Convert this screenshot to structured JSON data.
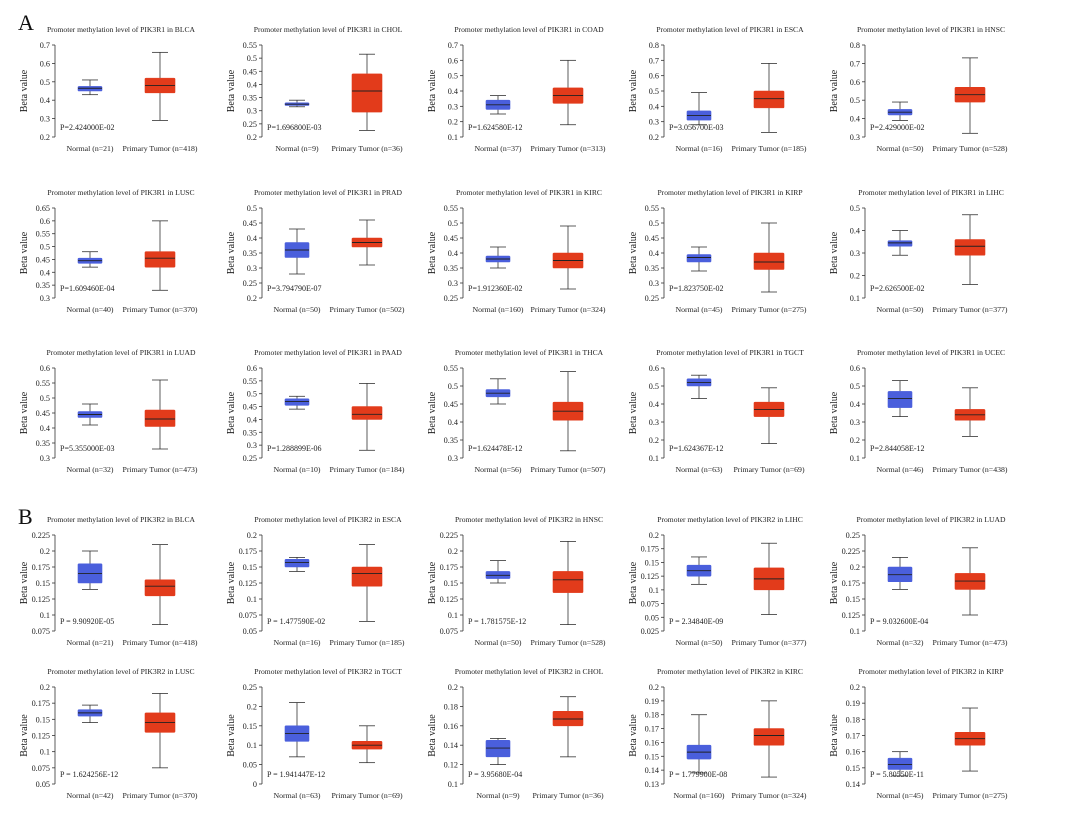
{
  "colors": {
    "normal": "#4a5fdc",
    "tumor": "#e23b1b",
    "median": "#222222"
  },
  "panels": [
    {
      "label": "A"
    },
    {
      "label": "B"
    }
  ],
  "chart_data": [
    {
      "type": "box",
      "panel": "A",
      "title": "Promoter methylation level of PIK3R1 in BLCA",
      "ylabel": "Beta value",
      "ylim": [
        0.2,
        0.7
      ],
      "yticks": [
        0.2,
        0.3,
        0.4,
        0.5,
        0.6,
        0.7
      ],
      "categories": [
        "Normal (n=21)",
        "Primary Tumor (n=418)"
      ],
      "pvalue": "P=2.424000E-02",
      "boxes": [
        [
          0.43,
          0.45,
          0.465,
          0.475,
          0.51
        ],
        [
          0.29,
          0.44,
          0.48,
          0.52,
          0.66
        ]
      ]
    },
    {
      "type": "box",
      "panel": "A",
      "title": "Promoter methylation level of PIK3R1 in CHOL",
      "ylabel": "Beta value",
      "ylim": [
        0.2,
        0.55
      ],
      "yticks": [
        0.2,
        0.25,
        0.3,
        0.35,
        0.4,
        0.45,
        0.5,
        0.55
      ],
      "categories": [
        "Normal (n=9)",
        "Primary Tumor (n=36)"
      ],
      "pvalue": "P=1.696800E-03",
      "boxes": [
        [
          0.315,
          0.32,
          0.325,
          0.33,
          0.34
        ],
        [
          0.225,
          0.295,
          0.375,
          0.44,
          0.515
        ]
      ]
    },
    {
      "type": "box",
      "panel": "A",
      "title": "Promoter methylation level of PIK3R1 in COAD",
      "ylabel": "Beta value",
      "ylim": [
        0.1,
        0.7
      ],
      "yticks": [
        0.1,
        0.2,
        0.3,
        0.4,
        0.5,
        0.6,
        0.7
      ],
      "categories": [
        "Normal (n=37)",
        "Primary Tumor (n=313)"
      ],
      "pvalue": "P=1.624580E-12",
      "boxes": [
        [
          0.25,
          0.28,
          0.31,
          0.34,
          0.37
        ],
        [
          0.18,
          0.32,
          0.37,
          0.42,
          0.6
        ]
      ]
    },
    {
      "type": "box",
      "panel": "A",
      "title": "Promoter methylation level of PIK3R1 in ESCA",
      "ylabel": "Beta value",
      "ylim": [
        0.2,
        0.8
      ],
      "yticks": [
        0.2,
        0.3,
        0.4,
        0.5,
        0.6,
        0.7,
        0.8
      ],
      "categories": [
        "Normal (n=16)",
        "Primary Tumor (n=185)"
      ],
      "pvalue": "P=3.056700E-03",
      "boxes": [
        [
          0.28,
          0.31,
          0.34,
          0.37,
          0.49
        ],
        [
          0.23,
          0.39,
          0.45,
          0.5,
          0.68
        ]
      ]
    },
    {
      "type": "box",
      "panel": "A",
      "title": "Promoter methylation level of PIK3R1 in HNSC",
      "ylabel": "Beta value",
      "ylim": [
        0.3,
        0.8
      ],
      "yticks": [
        0.3,
        0.4,
        0.5,
        0.6,
        0.7,
        0.8
      ],
      "categories": [
        "Normal (n=50)",
        "Primary Tumor (n=528)"
      ],
      "pvalue": "P=2.429000E-02",
      "boxes": [
        [
          0.39,
          0.42,
          0.435,
          0.45,
          0.49
        ],
        [
          0.32,
          0.49,
          0.53,
          0.57,
          0.73
        ]
      ]
    },
    {
      "type": "box",
      "panel": "A",
      "title": "Promoter methylation level of PIK3R1 in LUSC",
      "ylabel": "Beta value",
      "ylim": [
        0.3,
        0.65
      ],
      "yticks": [
        0.3,
        0.35,
        0.4,
        0.45,
        0.5,
        0.55,
        0.6,
        0.65
      ],
      "categories": [
        "Normal (n=40)",
        "Primary Tumor (n=370)"
      ],
      "pvalue": "P=1.609460E-04",
      "boxes": [
        [
          0.42,
          0.435,
          0.445,
          0.455,
          0.48
        ],
        [
          0.33,
          0.42,
          0.455,
          0.48,
          0.6
        ]
      ]
    },
    {
      "type": "box",
      "panel": "A",
      "title": "Promoter methylation level of PIK3R1 in PRAD",
      "ylabel": "Beta value",
      "ylim": [
        0.2,
        0.5
      ],
      "yticks": [
        0.2,
        0.25,
        0.3,
        0.35,
        0.4,
        0.45,
        0.5
      ],
      "categories": [
        "Normal (n=50)",
        "Primary Tumor (n=502)"
      ],
      "pvalue": "P=3.794790E-07",
      "boxes": [
        [
          0.28,
          0.335,
          0.36,
          0.385,
          0.43
        ],
        [
          0.31,
          0.37,
          0.385,
          0.4,
          0.46
        ]
      ]
    },
    {
      "type": "box",
      "panel": "A",
      "title": "Promoter methylation level of PIK3R1 in KIRC",
      "ylabel": "Beta value",
      "ylim": [
        0.25,
        0.55
      ],
      "yticks": [
        0.25,
        0.3,
        0.35,
        0.4,
        0.45,
        0.5,
        0.55
      ],
      "categories": [
        "Normal (n=160)",
        "Primary Tumor (n=324)"
      ],
      "pvalue": "P=1.912360E-02",
      "boxes": [
        [
          0.35,
          0.37,
          0.38,
          0.39,
          0.42
        ],
        [
          0.28,
          0.35,
          0.375,
          0.4,
          0.49
        ]
      ]
    },
    {
      "type": "box",
      "panel": "A",
      "title": "Promoter methylation level of PIK3R1 in KIRP",
      "ylabel": "Beta value",
      "ylim": [
        0.25,
        0.55
      ],
      "yticks": [
        0.25,
        0.3,
        0.35,
        0.4,
        0.45,
        0.5,
        0.55
      ],
      "categories": [
        "Normal (n=45)",
        "Primary Tumor (n=275)"
      ],
      "pvalue": "P=1.823750E-02",
      "boxes": [
        [
          0.34,
          0.37,
          0.385,
          0.395,
          0.42
        ],
        [
          0.27,
          0.345,
          0.37,
          0.4,
          0.5
        ]
      ]
    },
    {
      "type": "box",
      "panel": "A",
      "title": "Promoter methylation level of PIK3R1 in LIHC",
      "ylabel": "Beta value",
      "ylim": [
        0.1,
        0.5
      ],
      "yticks": [
        0.1,
        0.2,
        0.3,
        0.4,
        0.5
      ],
      "categories": [
        "Normal (n=50)",
        "Primary Tumor (n=377)"
      ],
      "pvalue": "P=2.626500E-02",
      "boxes": [
        [
          0.29,
          0.33,
          0.345,
          0.355,
          0.4
        ],
        [
          0.16,
          0.29,
          0.33,
          0.36,
          0.47
        ]
      ]
    },
    {
      "type": "box",
      "panel": "A",
      "title": "Promoter methylation level of PIK3R1 in LUAD",
      "ylabel": "Beta value",
      "ylim": [
        0.3,
        0.6
      ],
      "yticks": [
        0.3,
        0.35,
        0.4,
        0.45,
        0.5,
        0.55,
        0.6
      ],
      "categories": [
        "Normal (n=32)",
        "Primary Tumor (n=473)"
      ],
      "pvalue": "P=5.355000E-03",
      "boxes": [
        [
          0.41,
          0.435,
          0.445,
          0.455,
          0.48
        ],
        [
          0.33,
          0.405,
          0.43,
          0.46,
          0.56
        ]
      ]
    },
    {
      "type": "box",
      "panel": "A",
      "title": "Promoter methylation level of PIK3R1 in PAAD",
      "ylabel": "Beta value",
      "ylim": [
        0.25,
        0.6
      ],
      "yticks": [
        0.25,
        0.3,
        0.35,
        0.4,
        0.45,
        0.5,
        0.55,
        0.6
      ],
      "categories": [
        "Normal (n=10)",
        "Primary Tumor (n=184)"
      ],
      "pvalue": "P=1.288899E-06",
      "boxes": [
        [
          0.44,
          0.455,
          0.47,
          0.48,
          0.49
        ],
        [
          0.28,
          0.4,
          0.42,
          0.45,
          0.54
        ]
      ]
    },
    {
      "type": "box",
      "panel": "A",
      "title": "Promoter methylation level of PIK3R1 in THCA",
      "ylabel": "Beta value",
      "ylim": [
        0.3,
        0.55
      ],
      "yticks": [
        0.3,
        0.35,
        0.4,
        0.45,
        0.5,
        0.55
      ],
      "categories": [
        "Normal (n=56)",
        "Primary Tumor (n=507)"
      ],
      "pvalue": "P=1.624478E-12",
      "boxes": [
        [
          0.45,
          0.47,
          0.48,
          0.49,
          0.52
        ],
        [
          0.32,
          0.405,
          0.43,
          0.455,
          0.54
        ]
      ]
    },
    {
      "type": "box",
      "panel": "A",
      "title": "Promoter methylation level of PIK3R1 in TGCT",
      "ylabel": "Beta value",
      "ylim": [
        0.1,
        0.6
      ],
      "yticks": [
        0.1,
        0.2,
        0.3,
        0.4,
        0.5,
        0.6
      ],
      "categories": [
        "Normal (n=63)",
        "Primary Tumor (n=69)"
      ],
      "pvalue": "P=1.624367E-12",
      "boxes": [
        [
          0.43,
          0.5,
          0.52,
          0.54,
          0.56
        ],
        [
          0.18,
          0.33,
          0.37,
          0.41,
          0.49
        ]
      ]
    },
    {
      "type": "box",
      "panel": "A",
      "title": "Promoter methylation level of PIK3R1 in UCEC",
      "ylabel": "Beta value",
      "ylim": [
        0.1,
        0.6
      ],
      "yticks": [
        0.1,
        0.2,
        0.3,
        0.4,
        0.5,
        0.6
      ],
      "categories": [
        "Normal (n=46)",
        "Primary Tumor (n=438)"
      ],
      "pvalue": "P=2.844058E-12",
      "boxes": [
        [
          0.33,
          0.38,
          0.43,
          0.47,
          0.53
        ],
        [
          0.22,
          0.31,
          0.34,
          0.37,
          0.49
        ]
      ]
    },
    {
      "type": "box",
      "panel": "B",
      "title": "Promoter methylation level of PIK3R2 in BLCA",
      "ylabel": "Beta value",
      "ylim": [
        0.075,
        0.225
      ],
      "yticks": [
        0.075,
        0.1,
        0.125,
        0.15,
        0.175,
        0.2,
        0.225
      ],
      "categories": [
        "Normal (n=21)",
        "Primary Tumor (n=418)"
      ],
      "pvalue": "P = 9.90920E-05",
      "boxes": [
        [
          0.14,
          0.15,
          0.165,
          0.18,
          0.2
        ],
        [
          0.085,
          0.13,
          0.145,
          0.155,
          0.21
        ]
      ]
    },
    {
      "type": "box",
      "panel": "B",
      "title": "Promoter methylation level of PIK3R2 in ESCA",
      "ylabel": "Beta value",
      "ylim": [
        0.05,
        0.2
      ],
      "yticks": [
        0.05,
        0.075,
        0.1,
        0.125,
        0.15,
        0.175,
        0.2
      ],
      "categories": [
        "Normal (n=16)",
        "Primary Tumor (n=185)"
      ],
      "pvalue": "P = 1.477590E-02",
      "boxes": [
        [
          0.143,
          0.15,
          0.157,
          0.162,
          0.165
        ],
        [
          0.065,
          0.12,
          0.14,
          0.15,
          0.185
        ]
      ]
    },
    {
      "type": "box",
      "panel": "B",
      "title": "Promoter methylation level of PIK3R2 in HNSC",
      "ylabel": "Beta value",
      "ylim": [
        0.075,
        0.225
      ],
      "yticks": [
        0.075,
        0.1,
        0.125,
        0.15,
        0.175,
        0.2,
        0.225
      ],
      "categories": [
        "Normal (n=50)",
        "Primary Tumor (n=528)"
      ],
      "pvalue": "P = 1.781575E-12",
      "boxes": [
        [
          0.15,
          0.157,
          0.162,
          0.168,
          0.185
        ],
        [
          0.085,
          0.135,
          0.155,
          0.168,
          0.215
        ]
      ]
    },
    {
      "type": "box",
      "panel": "B",
      "title": "Promoter methylation level of PIK3R2 in LIHC",
      "ylabel": "Beta value",
      "ylim": [
        0.025,
        0.2
      ],
      "yticks": [
        0.025,
        0.05,
        0.075,
        0.1,
        0.125,
        0.15,
        0.175,
        0.2
      ],
      "categories": [
        "Normal (n=50)",
        "Primary Tumor (n=377)"
      ],
      "pvalue": "P = 2.34840E-09",
      "boxes": [
        [
          0.11,
          0.125,
          0.135,
          0.145,
          0.16
        ],
        [
          0.055,
          0.1,
          0.12,
          0.14,
          0.185
        ]
      ]
    },
    {
      "type": "box",
      "panel": "B",
      "title": "Promoter methylation level of PIK3R2 in LUAD",
      "ylabel": "Beta value",
      "ylim": [
        0.1,
        0.25
      ],
      "yticks": [
        0.1,
        0.125,
        0.15,
        0.175,
        0.2,
        0.225,
        0.25
      ],
      "categories": [
        "Normal (n=32)",
        "Primary Tumor (n=473)"
      ],
      "pvalue": "P = 9.032600E-04",
      "boxes": [
        [
          0.165,
          0.177,
          0.188,
          0.2,
          0.215
        ],
        [
          0.125,
          0.165,
          0.178,
          0.19,
          0.23
        ]
      ]
    },
    {
      "type": "box",
      "panel": "B",
      "title": "Promoter methylation level of PIK3R2 in LUSC",
      "ylabel": "Beta value",
      "ylim": [
        0.05,
        0.2
      ],
      "yticks": [
        0.05,
        0.075,
        0.1,
        0.125,
        0.15,
        0.175,
        0.2
      ],
      "categories": [
        "Normal (n=42)",
        "Primary Tumor (n=370)"
      ],
      "pvalue": "P = 1.624256E-12",
      "boxes": [
        [
          0.145,
          0.155,
          0.16,
          0.165,
          0.172
        ],
        [
          0.075,
          0.13,
          0.145,
          0.16,
          0.19
        ]
      ]
    },
    {
      "type": "box",
      "panel": "B",
      "title": "Promoter methylation level of PIK3R2 in TGCT",
      "ylabel": "Beta value",
      "ylim": [
        0,
        0.25
      ],
      "yticks": [
        0,
        0.05,
        0.1,
        0.15,
        0.2,
        0.25
      ],
      "categories": [
        "Normal (n=63)",
        "Primary Tumor (n=69)"
      ],
      "pvalue": "P = 1.941447E-12",
      "boxes": [
        [
          0.07,
          0.11,
          0.13,
          0.15,
          0.21
        ],
        [
          0.055,
          0.09,
          0.1,
          0.11,
          0.15
        ]
      ]
    },
    {
      "type": "box",
      "panel": "B",
      "title": "Promoter methylation level of PIK3R2 in CHOL",
      "ylabel": "Beta value",
      "ylim": [
        0.1,
        0.2
      ],
      "yticks": [
        0.1,
        0.12,
        0.14,
        0.16,
        0.18,
        0.2
      ],
      "categories": [
        "Normal (n=9)",
        "Primary Tumor (n=36)"
      ],
      "pvalue": "P = 3.95680E-04",
      "boxes": [
        [
          0.12,
          0.128,
          0.137,
          0.145,
          0.147
        ],
        [
          0.128,
          0.16,
          0.167,
          0.175,
          0.19
        ]
      ]
    },
    {
      "type": "box",
      "panel": "B",
      "title": "Promoter methylation level of PIK3R2 in KIRC",
      "ylabel": "Beta value",
      "ylim": [
        0.13,
        0.2
      ],
      "yticks": [
        0.13,
        0.14,
        0.15,
        0.16,
        0.17,
        0.18,
        0.19,
        0.2
      ],
      "categories": [
        "Normal (n=160)",
        "Primary Tumor (n=324)"
      ],
      "pvalue": "P = 1.779900E-08",
      "boxes": [
        [
          0.138,
          0.148,
          0.153,
          0.158,
          0.18
        ],
        [
          0.135,
          0.158,
          0.165,
          0.17,
          0.19
        ]
      ]
    },
    {
      "type": "box",
      "panel": "B",
      "title": "Promoter methylation level of PIK3R2 in KIRP",
      "ylabel": "Beta value",
      "ylim": [
        0.14,
        0.2
      ],
      "yticks": [
        0.14,
        0.15,
        0.16,
        0.17,
        0.18,
        0.19,
        0.2
      ],
      "categories": [
        "Normal (n=45)",
        "Primary Tumor (n=275)"
      ],
      "pvalue": "P = 5.80550E-11",
      "boxes": [
        [
          0.145,
          0.149,
          0.152,
          0.156,
          0.16
        ],
        [
          0.148,
          0.164,
          0.168,
          0.172,
          0.187
        ]
      ]
    }
  ]
}
